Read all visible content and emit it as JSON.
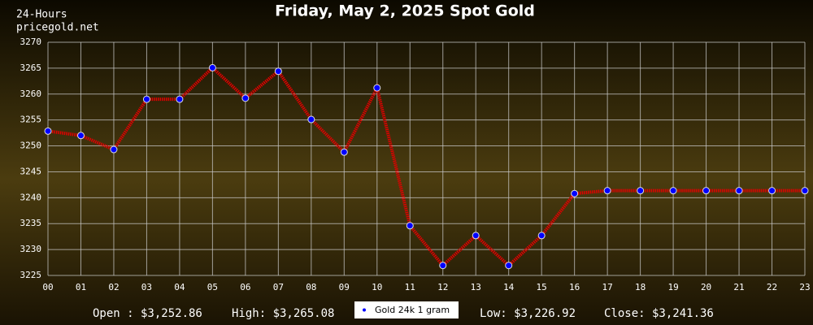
{
  "chart_data": {
    "type": "line",
    "title": "Friday, May 2, 2025 Spot Gold",
    "period": "24-Hours",
    "source": "pricegold.net",
    "categories": [
      "00",
      "01",
      "02",
      "03",
      "04",
      "05",
      "06",
      "07",
      "08",
      "09",
      "10",
      "11",
      "12",
      "13",
      "14",
      "15",
      "16",
      "17",
      "18",
      "19",
      "20",
      "21",
      "22",
      "23"
    ],
    "series": [
      {
        "name": "Gold 24k 1 gram",
        "color": "#e00000",
        "marker_color": "#0000ff",
        "values": [
          3252.86,
          3252.0,
          3249.3,
          3259.0,
          3259.0,
          3265.08,
          3259.2,
          3264.4,
          3255.1,
          3248.8,
          3261.2,
          3234.6,
          3226.92,
          3232.7,
          3226.92,
          3232.7,
          3240.8,
          3241.36,
          3241.36,
          3241.36,
          3241.36,
          3241.36,
          3241.36,
          3241.36
        ]
      }
    ],
    "ylim": [
      3225,
      3270
    ],
    "yticks": [
      3225,
      3230,
      3235,
      3240,
      3245,
      3250,
      3255,
      3260,
      3265,
      3270
    ],
    "grid": true,
    "stats": [
      "Open : $3,252.86",
      "High: $3,265.08",
      "Low: $3,226.92",
      "Close: $3,241.36"
    ]
  }
}
